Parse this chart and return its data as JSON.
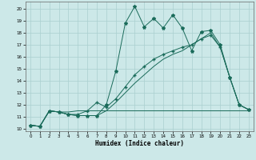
{
  "xlabel": "Humidex (Indice chaleur)",
  "bg_color": "#cce8e8",
  "grid_color": "#aacfcf",
  "line_color": "#1a6b5a",
  "xlim": [
    -0.5,
    23.5
  ],
  "ylim": [
    9.8,
    20.6
  ],
  "xticks": [
    0,
    1,
    2,
    3,
    4,
    5,
    6,
    7,
    8,
    9,
    10,
    11,
    12,
    13,
    14,
    15,
    16,
    17,
    18,
    19,
    20,
    21,
    22,
    23
  ],
  "yticks": [
    10,
    11,
    12,
    13,
    14,
    15,
    16,
    17,
    18,
    19,
    20
  ],
  "line1_x": [
    0,
    1,
    2,
    3,
    4,
    5,
    6,
    7,
    8,
    9,
    10,
    11,
    12,
    13,
    14,
    15,
    16,
    17,
    18,
    19,
    20,
    21,
    22,
    23
  ],
  "line1_y": [
    10.3,
    10.2,
    11.5,
    11.4,
    11.2,
    11.1,
    11.1,
    11.1,
    12.0,
    14.8,
    18.8,
    20.2,
    18.5,
    19.2,
    18.4,
    19.5,
    18.4,
    16.5,
    18.1,
    18.2,
    17.0,
    14.3,
    12.0,
    11.6
  ],
  "line2_x": [
    0,
    1,
    2,
    3,
    4,
    5,
    6,
    7,
    8,
    9,
    10,
    11,
    12,
    13,
    14,
    15,
    16,
    17,
    18,
    19,
    20,
    21,
    22,
    23
  ],
  "line2_y": [
    10.3,
    10.2,
    11.5,
    11.4,
    11.2,
    11.2,
    11.5,
    12.2,
    11.8,
    12.5,
    13.5,
    14.5,
    15.2,
    15.8,
    16.2,
    16.5,
    16.8,
    17.0,
    17.5,
    17.8,
    16.8,
    14.3,
    12.0,
    11.6
  ],
  "line3_x": [
    0,
    1,
    2,
    3,
    4,
    5,
    6,
    7,
    8,
    9,
    10,
    11,
    12,
    13,
    14,
    15,
    16,
    17,
    18,
    19,
    20,
    21,
    22,
    23
  ],
  "line3_y": [
    10.3,
    10.2,
    11.5,
    11.4,
    11.4,
    11.5,
    11.5,
    11.5,
    11.5,
    11.5,
    11.5,
    11.5,
    11.5,
    11.5,
    11.5,
    11.5,
    11.5,
    11.5,
    11.5,
    11.5,
    11.5,
    11.5,
    11.5,
    11.5
  ],
  "line4_x": [
    0,
    1,
    2,
    3,
    4,
    5,
    6,
    7,
    8,
    9,
    10,
    11,
    12,
    13,
    14,
    15,
    16,
    17,
    18,
    19,
    20,
    21,
    22,
    23
  ],
  "line4_y": [
    10.3,
    10.2,
    11.5,
    11.4,
    11.2,
    11.1,
    11.1,
    11.1,
    11.5,
    12.2,
    13.0,
    13.8,
    14.5,
    15.2,
    15.8,
    16.2,
    16.5,
    17.0,
    17.5,
    18.0,
    16.8,
    14.3,
    12.0,
    11.6
  ]
}
